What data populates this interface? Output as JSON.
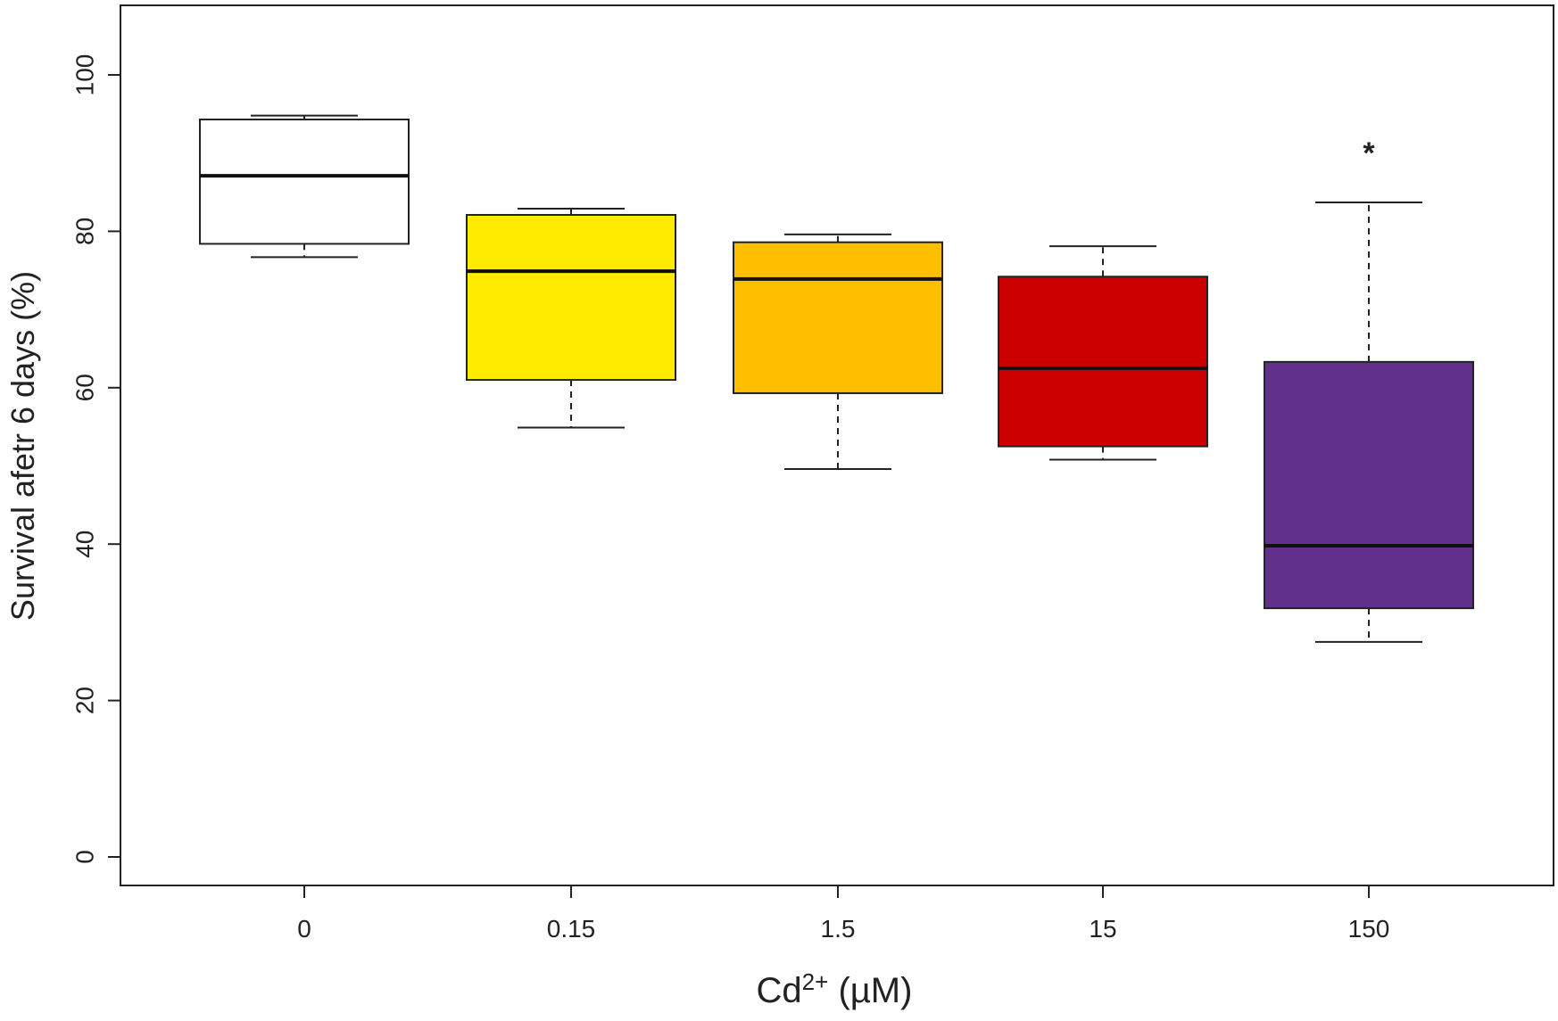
{
  "chart_data": {
    "type": "box",
    "title": "",
    "xlabel": "Cd",
    "xlabel_superscript": "2+",
    "xlabel_suffix": " (µM)",
    "ylabel": "Survival afetr 6 days (%)",
    "ylim": [
      0,
      109
    ],
    "y_ticks": [
      0,
      20,
      40,
      60,
      80,
      100
    ],
    "categories": [
      "0",
      "0.15",
      "1.5",
      "15",
      "150"
    ],
    "boxes": [
      {
        "category": "0",
        "whisker_low": 76.7,
        "q1": 78.4,
        "median": 87.1,
        "q3": 94.3,
        "whisker_high": 94.8,
        "outliers": [],
        "color": "#ffffff"
      },
      {
        "category": "0.15",
        "whisker_low": 54.9,
        "q1": 61.0,
        "median": 74.9,
        "q3": 82.1,
        "whisker_high": 82.9,
        "outliers": [],
        "color": "#ffeb00"
      },
      {
        "category": "1.5",
        "whisker_low": 49.6,
        "q1": 59.3,
        "median": 73.9,
        "q3": 78.6,
        "whisker_high": 79.6,
        "outliers": [],
        "color": "#ffbe00"
      },
      {
        "category": "15",
        "whisker_low": 50.8,
        "q1": 52.5,
        "median": 62.5,
        "q3": 74.2,
        "whisker_high": 78.1,
        "outliers": [],
        "color": "#cc0000"
      },
      {
        "category": "150",
        "whisker_low": 27.5,
        "q1": 31.8,
        "median": 39.8,
        "q3": 63.3,
        "whisker_high": 83.7,
        "outliers": [
          90.3
        ],
        "color": "#612f8c"
      }
    ],
    "grid": false,
    "legend": "none"
  }
}
